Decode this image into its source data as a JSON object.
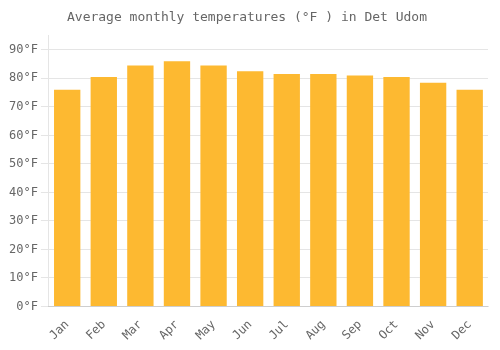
{
  "chart_data": {
    "type": "bar",
    "title": "Average monthly temperatures (°F ) in Det Udom",
    "categories": [
      "Jan",
      "Feb",
      "Mar",
      "Apr",
      "May",
      "Jun",
      "Jul",
      "Aug",
      "Sep",
      "Oct",
      "Nov",
      "Dec"
    ],
    "values": [
      76,
      80.5,
      84.5,
      86,
      84.5,
      82.5,
      81.5,
      81.5,
      81,
      80.5,
      78.5,
      76
    ],
    "color": "#FDB931",
    "ylim": [
      0,
      95
    ],
    "yticks": [
      {
        "value": 0,
        "label": "0°F"
      },
      {
        "value": 10,
        "label": "10°F"
      },
      {
        "value": 20,
        "label": "20°F"
      },
      {
        "value": 30,
        "label": "30°F"
      },
      {
        "value": 40,
        "label": "40°F"
      },
      {
        "value": 50,
        "label": "50°F"
      },
      {
        "value": 60,
        "label": "60°F"
      },
      {
        "value": 70,
        "label": "70°F"
      },
      {
        "value": 80,
        "label": "80°F"
      },
      {
        "value": 90,
        "label": "90°F"
      }
    ],
    "grid": true
  }
}
